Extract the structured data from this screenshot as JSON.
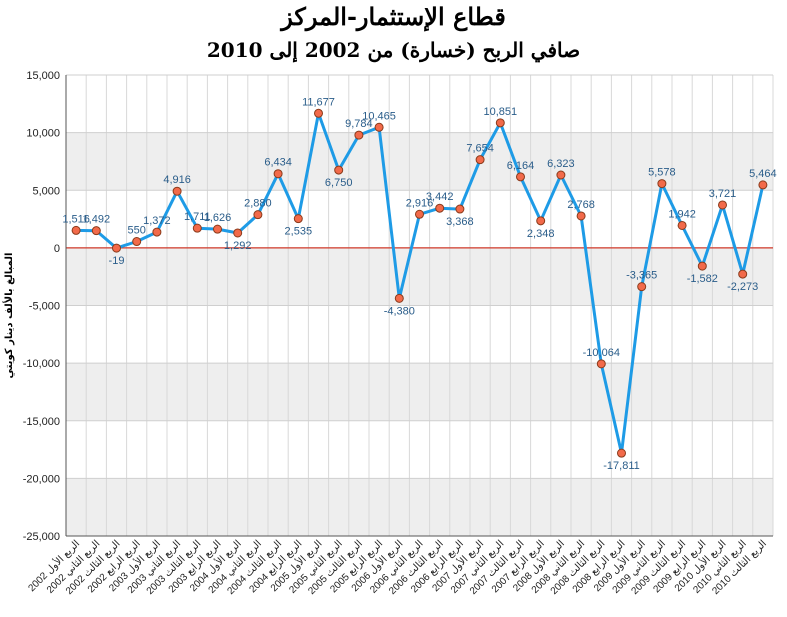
{
  "chart_data": {
    "type": "line",
    "title": "قطاع الإستثمار-المركز",
    "subtitle": "صافي الربح (خسارة) من 2002 إلى 2010",
    "ylabel": "المبالغ بالألف دينار كويتي",
    "ylim": [
      -25000,
      15000
    ],
    "yticks": [
      15000,
      10000,
      5000,
      0,
      -5000,
      -10000,
      -15000,
      -20000,
      -25000
    ],
    "ytick_labels": [
      "15,000",
      "10,000",
      "5,000",
      "0",
      "-5,000",
      "-10,000",
      "-15,000",
      "-20,000",
      "-25,000"
    ],
    "grid": true,
    "categories": [
      "الربع الأول 2002",
      "الربع الثاني 2002",
      "الربع الثالث 2002",
      "الربع الرابع 2002",
      "الربع الأول 2003",
      "الربع الثاني 2003",
      "الربع الثالث 2003",
      "الربع الرابع 2003",
      "الربع الأول 2004",
      "الربع الثاني 2004",
      "الربع الثالث 2004",
      "الربع الرابع 2004",
      "الربع الأول 2005",
      "الربع الثاني 2005",
      "الربع الثالث 2005",
      "الربع الرابع 2005",
      "الربع الأول 2006",
      "الربع الثاني 2006",
      "الربع الثالث 2006",
      "الربع الرابع 2006",
      "الربع الأول 2007",
      "الربع الثاني 2007",
      "الربع الثالث 2007",
      "الربع الرابع 2007",
      "الربع الأول 2008",
      "الربع الثاني 2008",
      "الربع الثالث 2008",
      "الربع الرابع 2008",
      "الربع الأول 2009",
      "الربع الثاني 2009",
      "الربع الثالث 2009",
      "الربع الرابع 2009",
      "الربع الأول 2010",
      "الربع الثاني 2010",
      "الربع الثالث 2010"
    ],
    "series": [
      {
        "values": [
          1516,
          1492,
          -19,
          550,
          1372,
          4916,
          1711,
          1626,
          1292,
          2880,
          6434,
          2535,
          11677,
          6750,
          9784,
          10465,
          -4380,
          2916,
          3442,
          3368,
          7654,
          10851,
          6164,
          2348,
          6323,
          2768,
          -10064,
          -17811,
          -3365,
          5578,
          1942,
          -1582,
          3721,
          -2273,
          5464
        ],
        "labels": [
          "1,516",
          "1,492",
          "-19",
          "550",
          "1,372",
          "4,916",
          "1,711",
          "1,626",
          "1,292",
          "2,880",
          "6,434",
          "2,535",
          "11,677",
          "6,750",
          "9,784",
          "10,465",
          "-4,380",
          "2,916",
          "3,442",
          "3,368",
          "7,654",
          "10,851",
          "6,164",
          "2,348",
          "6,323",
          "2,768",
          "-10,064",
          "-17,811",
          "-3,365",
          "5,578",
          "1,942",
          "-1,582",
          "3,721",
          "-2,273",
          "5,464"
        ]
      }
    ],
    "colors": {
      "line": "#1e9be6",
      "marker_fill": "#f26a4a",
      "marker_stroke": "#8a3a1a",
      "zero_line": "#d23a2a",
      "band": "#eeeeee"
    }
  }
}
